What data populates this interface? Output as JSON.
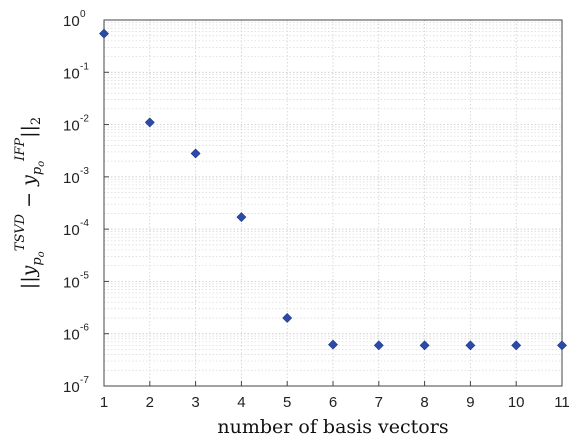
{
  "chart_data": {
    "type": "scatter",
    "xlabel": "number of basis vectors",
    "ylabel": {
      "prefix": "||y",
      "sub1": "p",
      "subsub1": "o",
      "sup1": "TSVD",
      "minus": " − y",
      "sub2": "p",
      "subsub2": "o",
      "sup2": "IFP",
      "suffix": "||",
      "norm_sub": "2"
    },
    "x": [
      1,
      2,
      3,
      4,
      5,
      6,
      7,
      8,
      9,
      10,
      11
    ],
    "y": [
      0.55,
      0.011,
      0.0028,
      0.00017,
      2e-06,
      6.2e-07,
      6e-07,
      6e-07,
      6e-07,
      6e-07,
      6e-07
    ],
    "xlim": [
      1,
      11
    ],
    "ylim": [
      1e-07,
      1
    ],
    "yscale": "log",
    "grid": true,
    "marker": "diamond",
    "marker_color": "#2c4aa8",
    "xticks": [
      "1",
      "2",
      "3",
      "4",
      "5",
      "6",
      "7",
      "8",
      "9",
      "10",
      "11"
    ],
    "yticks": [
      {
        "base": "10",
        "exp": "0",
        "value": 1
      },
      {
        "base": "10",
        "exp": "-1",
        "value": 0.1
      },
      {
        "base": "10",
        "exp": "-2",
        "value": 0.01
      },
      {
        "base": "10",
        "exp": "-3",
        "value": 0.001
      },
      {
        "base": "10",
        "exp": "-4",
        "value": 0.0001
      },
      {
        "base": "10",
        "exp": "-5",
        "value": 1e-05
      },
      {
        "base": "10",
        "exp": "-6",
        "value": 1e-06
      },
      {
        "base": "10",
        "exp": "-7",
        "value": 1e-07
      }
    ]
  }
}
